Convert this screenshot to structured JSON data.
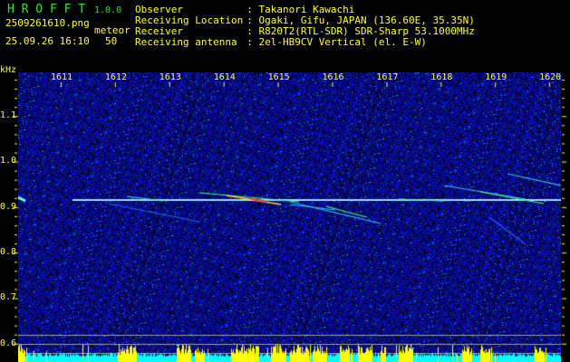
{
  "header": {
    "app_name": "H R O F F T",
    "version": "1.0.0",
    "filename": "2509261610.png",
    "datetime": "25.09.26 16:10",
    "mode_label": "meteor",
    "mode_value": "50",
    "info": [
      {
        "label": "Observer",
        "value": ": Takanori Kawachi"
      },
      {
        "label": "Receiving Location",
        "value": ": Ogaki, Gifu, JAPAN (136.60E, 35.35N)"
      },
      {
        "label": "Receiver",
        "value": ": R820T2(RTL-SDR) SDR-Sharp 53.1000MHz"
      },
      {
        "label": "Receiving antenna",
        "value": ": 2el-HB9CV Vertical (el. E-W)"
      }
    ]
  },
  "spectrogram": {
    "y_unit": "kHz",
    "y_ticks": [
      "1.1",
      "1.0",
      "0.9",
      "0.8",
      "0.7",
      "0.6"
    ],
    "x_ticks": [
      "1611",
      "1612",
      "1613",
      "1614",
      "1615",
      "1616",
      "1617",
      "1618",
      "1619",
      "1620"
    ],
    "colors": {
      "text": "#ffff33",
      "title": "#33dd33",
      "background_noise": "#1010a0",
      "activity_bar": "#ffff00",
      "baseline_bar": "#00ffff"
    }
  }
}
